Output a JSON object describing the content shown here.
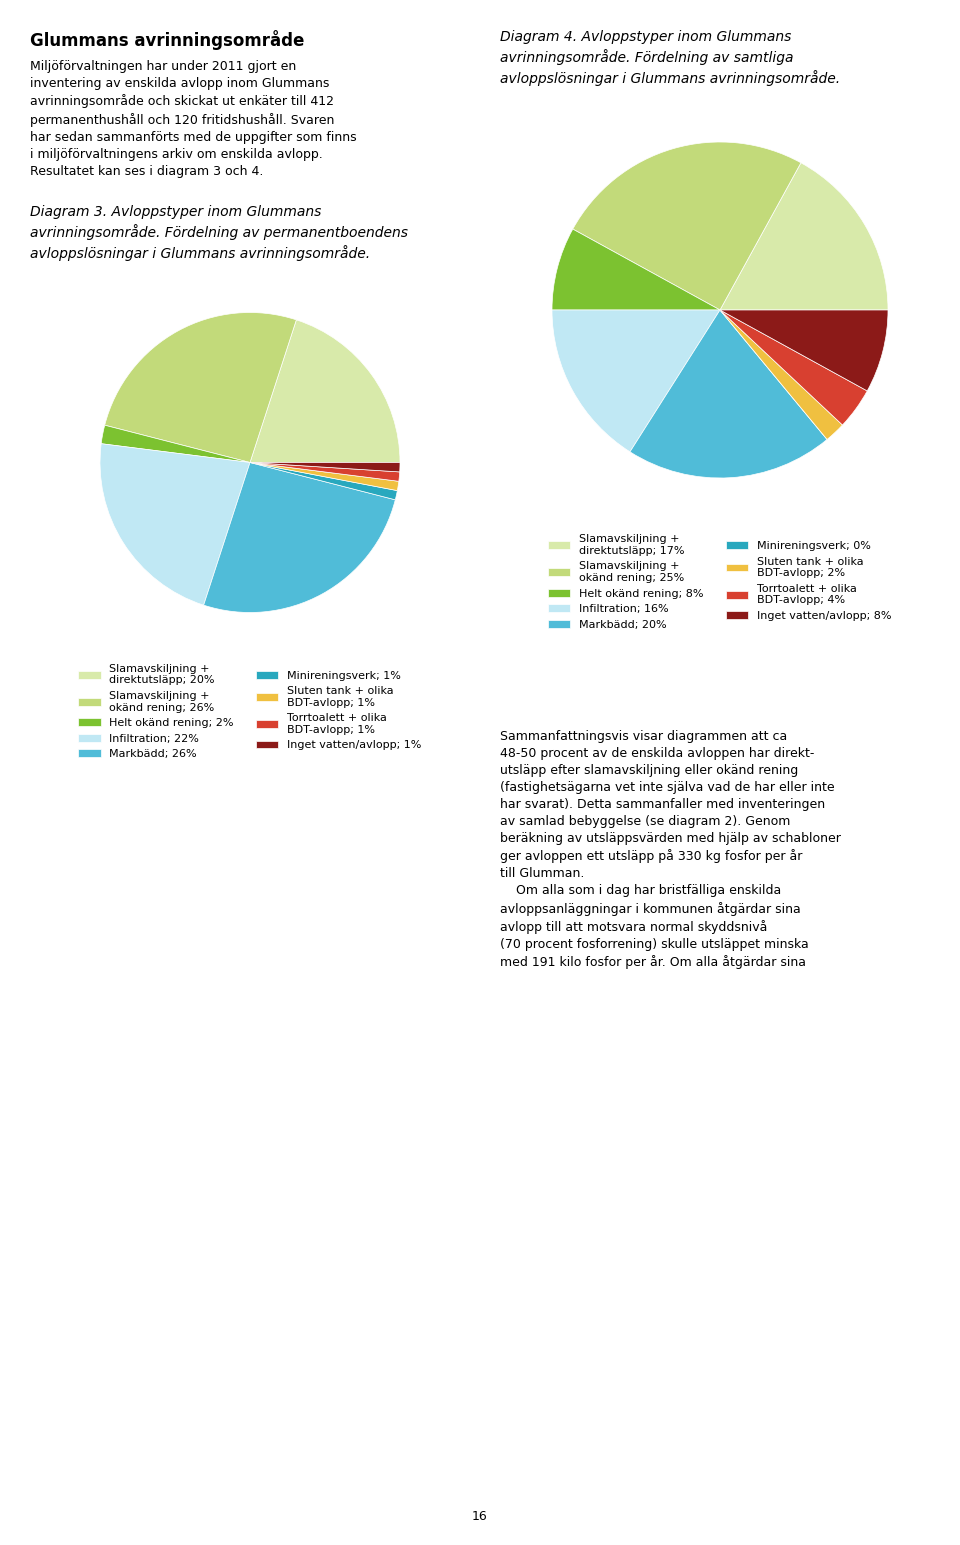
{
  "title": "Glummans avrinningsområde",
  "annotations": [
    "Miljöförvaltningen har under 2011 gjort en\ninventering av enskilda avlopp inom Glummans\navrinningsområde och skickat ut enkäter till 412\npermanenthushåll och 120 fritidshushåll. Svaren\nhar sedan sammanförts med de uppgifter som finns\ni miljöförvaltningens arkiv om enskilda avlopp.\nResultatet kan ses i diagram 3 och 4.",
    "Sammanfattningsvis visar diagrammen att ca\n48-50 procent av de enskilda avloppen har direkt-\nutsläpp efter slamavskiljning eller okänd rening\n(fastighetsägarna vet inte själva vad de har eller inte\nhar svarat). Detta sammanfaller med inventeringen\nav samlad bebyggelse (se diagram 2). Genom\nberäkning av utsläppsvärden med hjälp av schabloner\nger avloppen ett utsläpp på 330 kg fosfor per år\ntill Glumman.\n    Om alla som i dag har bristfälliga enskilda\navloppsanläggningar i kommunen åtgärdar sina\navlopp till att motsvara normal skyddsnivå\n(70 procent fosforrening) skulle utsläppet minska\nmed 191 kilo fosfor per år. Om alla åtgärdar sina",
    "16"
  ],
  "chart_data": [
    {
      "type": "pie",
      "title": "Diagram 3. Avloppstyper inom Glummans\navrinningsområde. Fördelning av permanentboendens\navloppslösningar i Glummans avrinningsområde.",
      "categories": [
        "Slamavskiljning +\ndirektutsläpp; 20%",
        "Slamavskiljning +\nokänd rening; 26%",
        "Helt okänd rening; 2%",
        "Infiltration; 22%",
        "Markbädd; 26%",
        "Minireningsverk; 1%",
        "Sluten tank + olika\nBDT-avlopp; 1%",
        "Torrtoalett + olika\nBDT-avlopp; 1%",
        "Inget vatten/avlopp; 1%"
      ],
      "values": [
        20,
        26,
        2,
        22,
        26,
        1,
        1,
        1,
        1
      ],
      "colors": [
        "#d8eaaa",
        "#c2da7a",
        "#7cc230",
        "#c0e8f4",
        "#50bcd8",
        "#28a8be",
        "#f0c040",
        "#d84030",
        "#8c1a18"
      ],
      "legend": "upper center"
    },
    {
      "type": "pie",
      "title": "Diagram 4. Avloppstyper inom Glummans\navrinningsområde. Fördelning av samtliga\navloppslösningar i Glummans avrinningsområde.",
      "categories": [
        "Slamavskiljning +\ndirektutsläpp; 17%",
        "Slamavskiljning +\nokänd rening; 25%",
        "Helt okänd rening; 8%",
        "Infiltration; 16%",
        "Markbädd; 20%",
        "Minireningsverk; 0%",
        "Sluten tank + olika\nBDT-avlopp; 2%",
        "Torrtoalett + olika\nBDT-avlopp; 4%",
        "Inget vatten/avlopp; 8%"
      ],
      "values": [
        17,
        25,
        8,
        16,
        20,
        0,
        2,
        4,
        8
      ],
      "colors": [
        "#d8eaaa",
        "#c2da7a",
        "#7cc230",
        "#c0e8f4",
        "#50bcd8",
        "#28a8be",
        "#f0c040",
        "#d84030",
        "#8c1a18"
      ],
      "legend": "upper center"
    }
  ]
}
